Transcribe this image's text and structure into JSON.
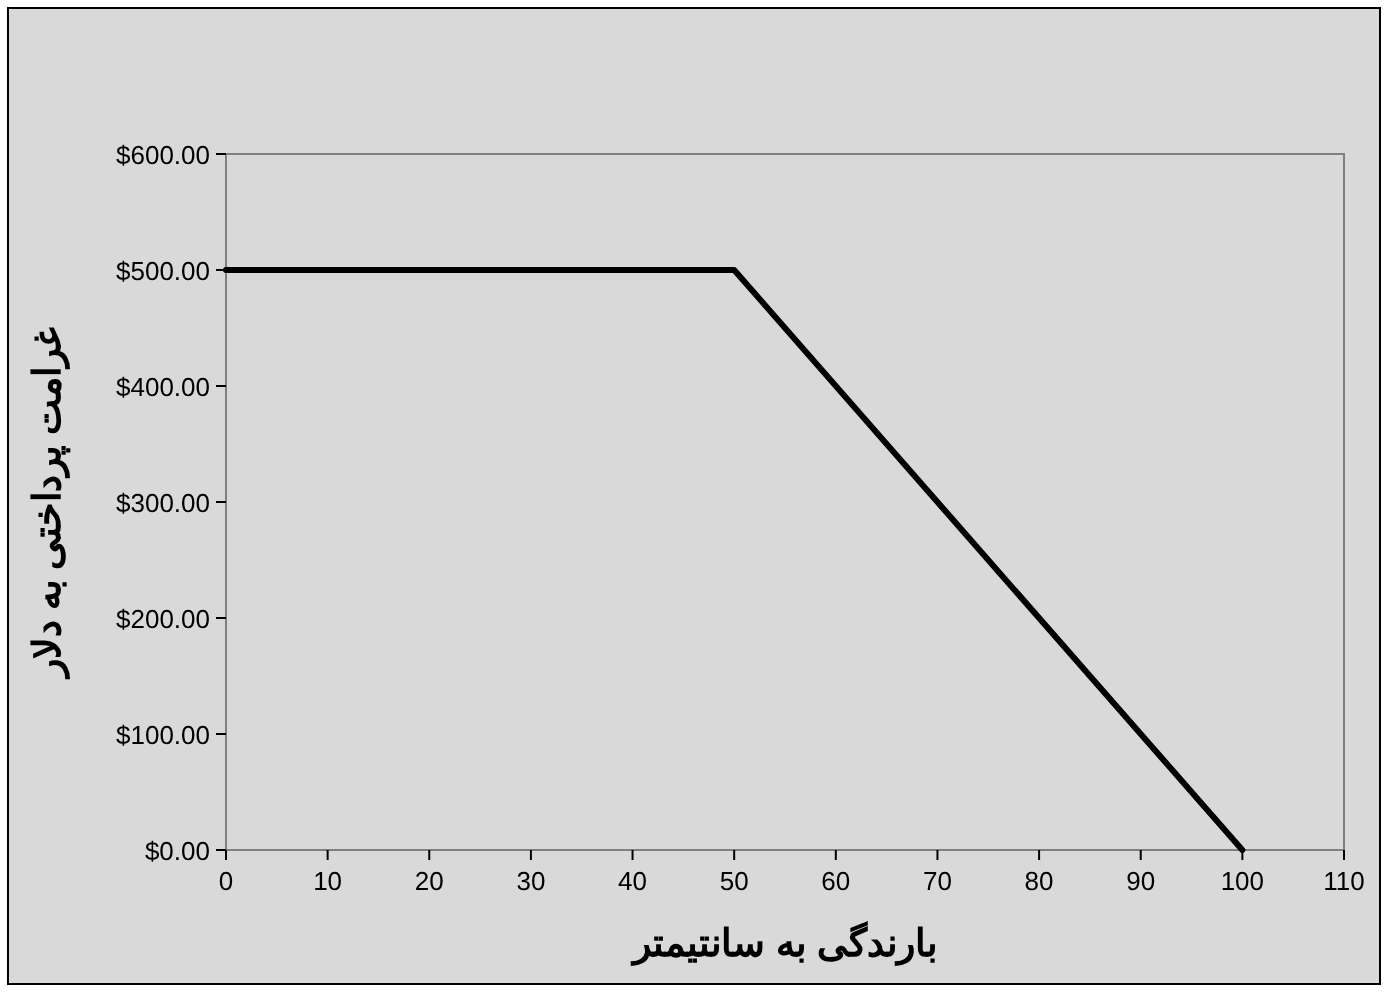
{
  "chart_data": {
    "type": "line",
    "xlabel": "بارندگی به سانتیمتر",
    "ylabel": "غرامت پرداختی به دلار",
    "x": [
      0,
      50,
      100
    ],
    "series": [
      {
        "color": "#000000",
        "values": [
          500,
          500,
          0
        ]
      }
    ],
    "xlim": [
      0,
      110
    ],
    "xticks": [
      0,
      10,
      20,
      30,
      40,
      50,
      60,
      70,
      80,
      90,
      100,
      110
    ],
    "ylim": [
      0,
      600
    ],
    "yticks": [
      {
        "value": 0,
        "label": "$0.00"
      },
      {
        "value": 100,
        "label": "$100.00"
      },
      {
        "value": 200,
        "label": "$200.00"
      },
      {
        "value": 300,
        "label": "$300.00"
      },
      {
        "value": 400,
        "label": "$400.00"
      },
      {
        "value": 500,
        "label": "$500.00"
      },
      {
        "value": 600,
        "label": "$600.00"
      }
    ],
    "grid": false,
    "marker": "none",
    "line_style": "solid"
  }
}
